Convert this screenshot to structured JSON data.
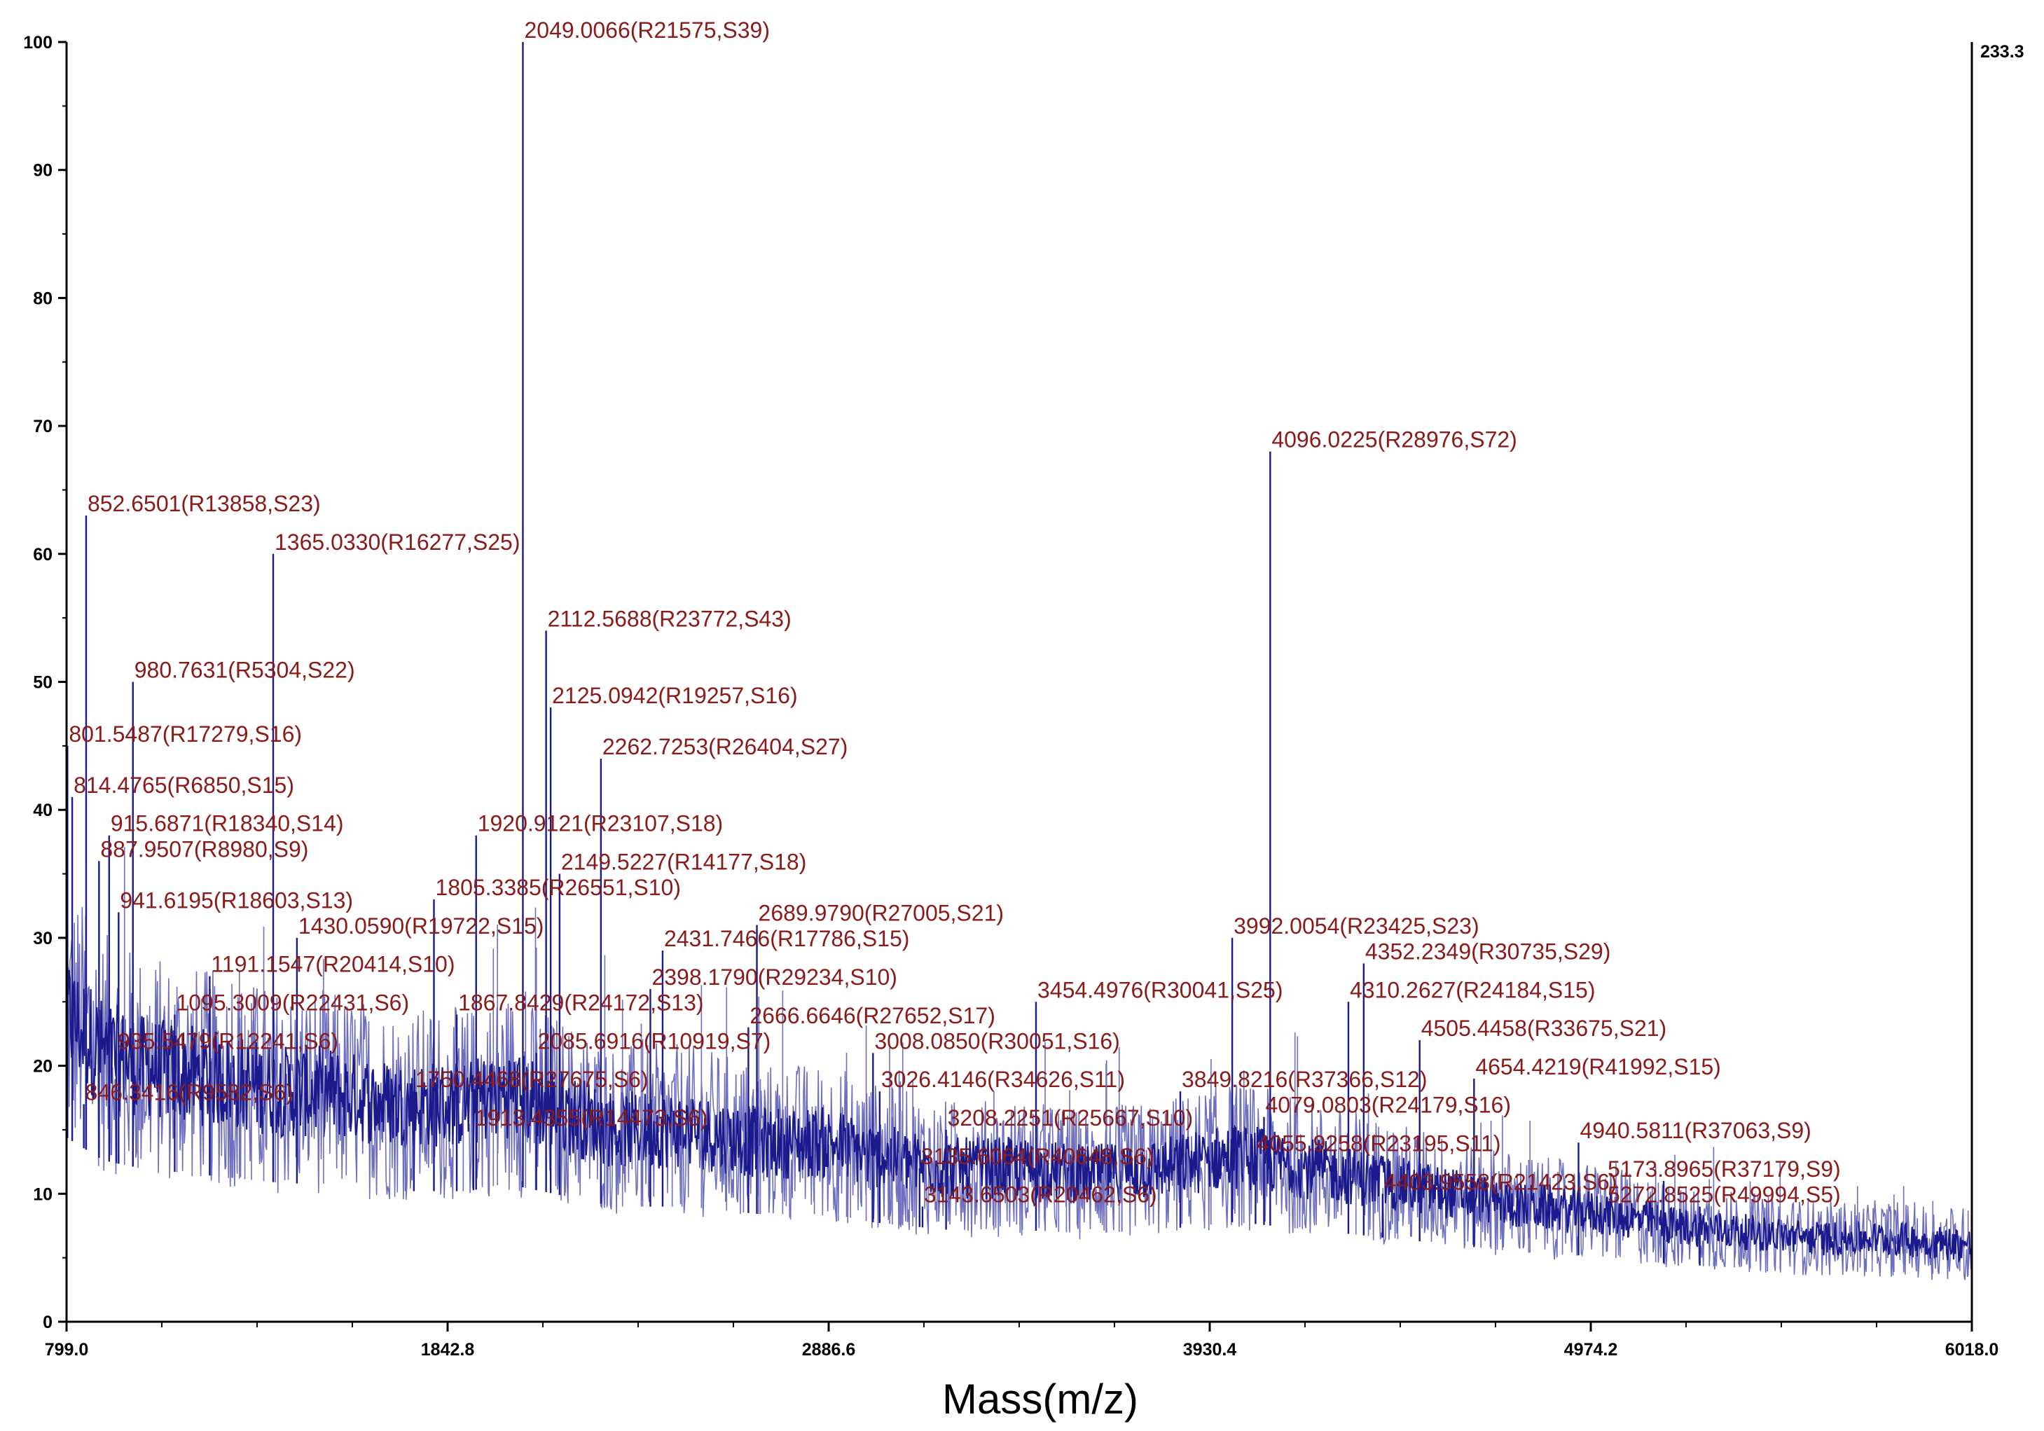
{
  "chart_data": {
    "type": "line",
    "title": "",
    "xlabel": "Mass(m/z)",
    "ylabel": "",
    "xlim": [
      799.0,
      6018.0
    ],
    "ylim": [
      0,
      100
    ],
    "x_ticks": [
      "799.0",
      "1842.8",
      "2886.6",
      "3930.4",
      "4974.2",
      "6018.0"
    ],
    "y_ticks": [
      "0",
      "10",
      "20",
      "30",
      "40",
      "50",
      "60",
      "70",
      "80",
      "90",
      "100"
    ],
    "max_intensity_label": "233.3",
    "colors": {
      "spectrum_light": "#6f6fc0",
      "spectrum_dark": "#1a1a8c",
      "label": "#8b1a1a",
      "axis": "#000000"
    },
    "series": [
      {
        "name": "spectrum",
        "baseline": [
          [
            799,
            24
          ],
          [
            900,
            21
          ],
          [
            1000,
            20
          ],
          [
            1100,
            19.5
          ],
          [
            1200,
            19
          ],
          [
            1300,
            18.5
          ],
          [
            1400,
            18
          ],
          [
            1500,
            18
          ],
          [
            1600,
            17.5
          ],
          [
            1700,
            17
          ],
          [
            1800,
            17
          ],
          [
            1900,
            17
          ],
          [
            2000,
            18
          ],
          [
            2100,
            17
          ],
          [
            2200,
            16
          ],
          [
            2300,
            15
          ],
          [
            2400,
            15
          ],
          [
            2500,
            15
          ],
          [
            2600,
            14.5
          ],
          [
            2700,
            14
          ],
          [
            2800,
            14
          ],
          [
            2900,
            14
          ],
          [
            3000,
            13
          ],
          [
            3200,
            12
          ],
          [
            3400,
            12
          ],
          [
            3600,
            11.5
          ],
          [
            3800,
            12
          ],
          [
            4000,
            13
          ],
          [
            4200,
            12
          ],
          [
            4400,
            11
          ],
          [
            4600,
            10
          ],
          [
            4800,
            9
          ],
          [
            5000,
            8.5
          ],
          [
            5200,
            7.5
          ],
          [
            5400,
            7
          ],
          [
            5600,
            6.5
          ],
          [
            5800,
            6.5
          ],
          [
            6018,
            6
          ]
        ]
      }
    ],
    "peaks": [
      {
        "mz": 801.5487,
        "intensity": 45,
        "label": "801.5487(R17279,S16)"
      },
      {
        "mz": 814.4765,
        "intensity": 41,
        "label": "814.4765(R6850,S15)"
      },
      {
        "mz": 846.3416,
        "intensity": 17,
        "label": "846.3416(R9582,S6)"
      },
      {
        "mz": 852.6501,
        "intensity": 63,
        "label": "852.6501(R13858,S23)"
      },
      {
        "mz": 887.9507,
        "intensity": 36,
        "label": "887.9507(R8980,S9)"
      },
      {
        "mz": 915.6871,
        "intensity": 38,
        "label": "915.6871(R18340,S14)"
      },
      {
        "mz": 935.5479,
        "intensity": 21,
        "label": "935.5479(R12241,S6)"
      },
      {
        "mz": 941.6195,
        "intensity": 32,
        "label": "941.6195(R18603,S13)"
      },
      {
        "mz": 980.7631,
        "intensity": 50,
        "label": "980.7631(R5304,S22)"
      },
      {
        "mz": 1095.3009,
        "intensity": 24,
        "label": "1095.3009(R22431,S6)"
      },
      {
        "mz": 1191.1547,
        "intensity": 27,
        "label": "1191.1547(R20414,S10)"
      },
      {
        "mz": 1365.033,
        "intensity": 60,
        "label": "1365.0330(R16277,S25)"
      },
      {
        "mz": 1430.059,
        "intensity": 30,
        "label": "1430.0590(R19722,S15)"
      },
      {
        "mz": 1750.4468,
        "intensity": 18,
        "label": "1750.4468(R27675,S6)"
      },
      {
        "mz": 1805.3385,
        "intensity": 33,
        "label": "1805.3385(R26551,S10)"
      },
      {
        "mz": 1867.8429,
        "intensity": 24,
        "label": "1867.8429(R24172,S13)"
      },
      {
        "mz": 1913.4355,
        "intensity": 15,
        "label": "1913.4355(R14473,S6)"
      },
      {
        "mz": 1920.9121,
        "intensity": 38,
        "label": "1920.9121(R23107,S18)"
      },
      {
        "mz": 2049.0066,
        "intensity": 100,
        "label": "2049.0066(R21575,S39)"
      },
      {
        "mz": 2085.6916,
        "intensity": 21,
        "label": "2085.6916(R10919,S7)"
      },
      {
        "mz": 2112.5688,
        "intensity": 54,
        "label": "2112.5688(R23772,S43)"
      },
      {
        "mz": 2125.0942,
        "intensity": 48,
        "label": "2125.0942(R19257,S16)"
      },
      {
        "mz": 2149.5227,
        "intensity": 35,
        "label": "2149.5227(R14177,S18)"
      },
      {
        "mz": 2262.7253,
        "intensity": 44,
        "label": "2262.7253(R26404,S27)"
      },
      {
        "mz": 2398.179,
        "intensity": 26,
        "label": "2398.1790(R29234,S10)"
      },
      {
        "mz": 2431.7466,
        "intensity": 29,
        "label": "2431.7466(R17786,S15)"
      },
      {
        "mz": 2666.6646,
        "intensity": 23,
        "label": "2666.6646(R27652,S17)"
      },
      {
        "mz": 2689.979,
        "intensity": 31,
        "label": "2689.9790(R27005,S21)"
      },
      {
        "mz": 3008.085,
        "intensity": 21,
        "label": "3008.0850(R30051,S16)"
      },
      {
        "mz": 3026.4146,
        "intensity": 18,
        "label": "3026.4146(R34626,S11)"
      },
      {
        "mz": 3135.6064,
        "intensity": 12,
        "label": "3135.6064(R40648,S6)"
      },
      {
        "mz": 3143.6503,
        "intensity": 9,
        "label": "3143.6503(R20462,S6)"
      },
      {
        "mz": 3208.2251,
        "intensity": 15,
        "label": "3208.2251(R25667,S10)"
      },
      {
        "mz": 3454.4976,
        "intensity": 25,
        "label": "3454.4976(R30041,S25)"
      },
      {
        "mz": 3849.8216,
        "intensity": 18,
        "label": "3849.8216(R37366,S12)"
      },
      {
        "mz": 3992.0054,
        "intensity": 30,
        "label": "3992.0054(R23425,S23)"
      },
      {
        "mz": 4055.9258,
        "intensity": 13,
        "label": "4055.9258(R23195,S11)"
      },
      {
        "mz": 4079.0803,
        "intensity": 16,
        "label": "4079.0803(R24179,S16)"
      },
      {
        "mz": 4096.0225,
        "intensity": 68,
        "label": "4096.0225(R28976,S72)"
      },
      {
        "mz": 4310.2627,
        "intensity": 25,
        "label": "4310.2627(R24184,S15)"
      },
      {
        "mz": 4352.2349,
        "intensity": 28,
        "label": "4352.2349(R30735,S29)"
      },
      {
        "mz": 4403.9558,
        "intensity": 10,
        "label": "4403.9558(R21423,S6)"
      },
      {
        "mz": 4505.4458,
        "intensity": 22,
        "label": "4505.4458(R33675,S21)"
      },
      {
        "mz": 4654.4219,
        "intensity": 19,
        "label": "4654.4219(R41992,S15)"
      },
      {
        "mz": 4940.5811,
        "intensity": 14,
        "label": "4940.5811(R37063,S9)"
      },
      {
        "mz": 5173.8965,
        "intensity": 11,
        "label": "5173.8965(R37179,S9)"
      },
      {
        "mz": 5272.8525,
        "intensity": 9,
        "label": "5272.8525(R49994,S5)"
      }
    ]
  }
}
